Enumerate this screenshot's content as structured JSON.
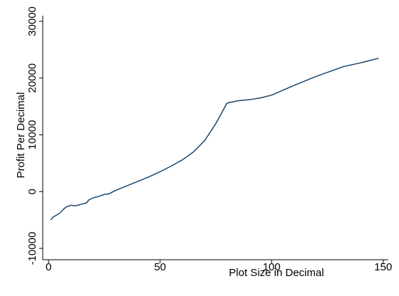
{
  "chart_data": {
    "type": "line",
    "x_label": "Plot Size in Decimal",
    "y_label": "Profit Per Decimal",
    "x": [
      1,
      2,
      5,
      7,
      8,
      10,
      12,
      15,
      17,
      18,
      20,
      22,
      25,
      27,
      30,
      35,
      40,
      45,
      50,
      55,
      60,
      65,
      70,
      75,
      80,
      85,
      90,
      95,
      100,
      110,
      120,
      132,
      140,
      148
    ],
    "series": [
      {
        "color": "#1a476f",
        "values": [
          -5000,
          -4500,
          -3800,
          -3000,
          -2700,
          -2400,
          -2500,
          -2200,
          -2000,
          -1500,
          -1100,
          -900,
          -500,
          -400,
          200,
          1000,
          1800,
          2600,
          3500,
          4500,
          5600,
          7000,
          9000,
          12000,
          15600,
          16000,
          16200,
          16500,
          17000,
          18700,
          20300,
          22000,
          22700,
          23500
        ]
      }
    ],
    "xlim": [
      -2.6,
      152.3
    ],
    "xticks": [
      0,
      50,
      100,
      150
    ],
    "ylim": [
      -12000,
      31000
    ],
    "yticks": [
      -10000,
      0,
      10000,
      20000,
      30000
    ],
    "grid": false
  }
}
